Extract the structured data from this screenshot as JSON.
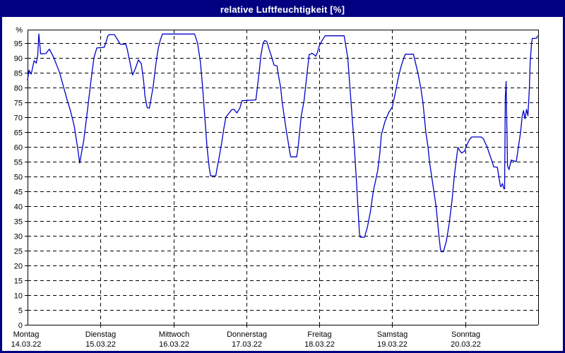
{
  "window": {
    "title": "relative Luftfeuchtigkeit [%]",
    "title_bar_color": "#000080",
    "border_color": "#000080",
    "background_color": "#ffffff"
  },
  "chart_data": {
    "type": "line",
    "title": "relative Luftfeuchtigkeit [%]",
    "xlabel": "",
    "ylabel": "%",
    "ylim": [
      0,
      100
    ],
    "y_ticks": [
      0,
      5,
      10,
      15,
      20,
      25,
      30,
      35,
      40,
      45,
      50,
      55,
      60,
      65,
      70,
      75,
      80,
      85,
      90,
      95
    ],
    "grid": "dashed",
    "legend_position": "none",
    "line_color": "#0000C8",
    "axis_color": "#000000",
    "x_days": [
      {
        "name": "Montag",
        "date": "14.03.22"
      },
      {
        "name": "Dienstag",
        "date": "15.03.22"
      },
      {
        "name": "Mittwoch",
        "date": "16.03.22"
      },
      {
        "name": "Donnerstag",
        "date": "17.03.22"
      },
      {
        "name": "Freitag",
        "date": "18.03.22"
      },
      {
        "name": "Samstag",
        "date": "19.03.22"
      },
      {
        "name": "Sonntag",
        "date": "20.03.22"
      }
    ],
    "series": [
      {
        "name": "relative Luftfeuchtigkeit",
        "unit": "%",
        "x_unit": "days_since_14_03_22",
        "points": [
          [
            0.0,
            82.5
          ],
          [
            0.02,
            85.8
          ],
          [
            0.05,
            84.5
          ],
          [
            0.09,
            89.0
          ],
          [
            0.12,
            88.2
          ],
          [
            0.14,
            91.0
          ],
          [
            0.155,
            98.0
          ],
          [
            0.18,
            91.3
          ],
          [
            0.25,
            91.4
          ],
          [
            0.3,
            92.9
          ],
          [
            0.36,
            90.0
          ],
          [
            0.44,
            85.0
          ],
          [
            0.49,
            80.5
          ],
          [
            0.54,
            76.0
          ],
          [
            0.59,
            72.0
          ],
          [
            0.64,
            67.0
          ],
          [
            0.69,
            59.0
          ],
          [
            0.715,
            54.5
          ],
          [
            0.77,
            62.0
          ],
          [
            0.82,
            72.0
          ],
          [
            0.87,
            82.5
          ],
          [
            0.91,
            90.0
          ],
          [
            0.95,
            93.3
          ],
          [
            1.05,
            93.5
          ],
          [
            1.08,
            95.5
          ],
          [
            1.1,
            97.3
          ],
          [
            1.12,
            97.8
          ],
          [
            1.19,
            97.8
          ],
          [
            1.23,
            96.3
          ],
          [
            1.27,
            94.6
          ],
          [
            1.35,
            94.5
          ],
          [
            1.37,
            92.5
          ],
          [
            1.39,
            90.0
          ],
          [
            1.42,
            86.5
          ],
          [
            1.44,
            84.2
          ],
          [
            1.48,
            86.5
          ],
          [
            1.52,
            89.3
          ],
          [
            1.56,
            88.0
          ],
          [
            1.59,
            82.5
          ],
          [
            1.61,
            77.0
          ],
          [
            1.64,
            73.2
          ],
          [
            1.67,
            73.0
          ],
          [
            1.72,
            80.0
          ],
          [
            1.76,
            88.0
          ],
          [
            1.79,
            93.0
          ],
          [
            1.82,
            96.0
          ],
          [
            1.85,
            98.0
          ],
          [
            2.29,
            98.0
          ],
          [
            2.33,
            95.0
          ],
          [
            2.37,
            88.5
          ],
          [
            2.4,
            80.0
          ],
          [
            2.43,
            70.0
          ],
          [
            2.46,
            60.0
          ],
          [
            2.49,
            53.0
          ],
          [
            2.51,
            50.2
          ],
          [
            2.58,
            50.2
          ],
          [
            2.6,
            53.0
          ],
          [
            2.62,
            55.5
          ],
          [
            2.66,
            61.0
          ],
          [
            2.69,
            66.0
          ],
          [
            2.72,
            70.0
          ],
          [
            2.8,
            72.5
          ],
          [
            2.83,
            72.6
          ],
          [
            2.87,
            71.4
          ],
          [
            2.91,
            73.0
          ],
          [
            2.94,
            75.5
          ],
          [
            3.13,
            75.8
          ],
          [
            3.15,
            80.0
          ],
          [
            3.18,
            86.0
          ],
          [
            3.2,
            91.0
          ],
          [
            3.23,
            95.0
          ],
          [
            3.25,
            95.8
          ],
          [
            3.28,
            95.5
          ],
          [
            3.31,
            93.0
          ],
          [
            3.35,
            90.0
          ],
          [
            3.38,
            87.5
          ],
          [
            3.42,
            87.3
          ],
          [
            3.44,
            84.0
          ],
          [
            3.47,
            80.0
          ],
          [
            3.49,
            75.0
          ],
          [
            3.52,
            70.0
          ],
          [
            3.55,
            65.0
          ],
          [
            3.58,
            60.5
          ],
          [
            3.6,
            57.5
          ],
          [
            3.61,
            56.6
          ],
          [
            3.69,
            56.6
          ],
          [
            3.71,
            60.0
          ],
          [
            3.73,
            65.0
          ],
          [
            3.75,
            70.0
          ],
          [
            3.79,
            75.5
          ],
          [
            3.86,
            91.0
          ],
          [
            3.9,
            91.5
          ],
          [
            3.93,
            91.0
          ],
          [
            3.95,
            90.5
          ],
          [
            3.97,
            91.5
          ],
          [
            4.0,
            94.0
          ],
          [
            4.03,
            95.5
          ],
          [
            4.08,
            97.4
          ],
          [
            4.34,
            97.4
          ],
          [
            4.39,
            90.0
          ],
          [
            4.42,
            80.0
          ],
          [
            4.45,
            70.0
          ],
          [
            4.48,
            60.0
          ],
          [
            4.51,
            48.0
          ],
          [
            4.55,
            31.0
          ],
          [
            4.56,
            29.5
          ],
          [
            4.62,
            29.5
          ],
          [
            4.66,
            33.0
          ],
          [
            4.7,
            38.0
          ],
          [
            4.74,
            45.0
          ],
          [
            4.8,
            52.0
          ],
          [
            4.83,
            58.0
          ],
          [
            4.85,
            64.0
          ],
          [
            4.9,
            68.5
          ],
          [
            4.95,
            71.5
          ],
          [
            5.0,
            73.4
          ],
          [
            5.04,
            78.0
          ],
          [
            5.08,
            83.0
          ],
          [
            5.12,
            87.0
          ],
          [
            5.16,
            90.1
          ],
          [
            5.18,
            91.2
          ],
          [
            5.29,
            91.2
          ],
          [
            5.35,
            85.0
          ],
          [
            5.39,
            80.0
          ],
          [
            5.42,
            75.0
          ],
          [
            5.44,
            70.0
          ],
          [
            5.46,
            65.0
          ],
          [
            5.49,
            60.0
          ],
          [
            5.51,
            55.0
          ],
          [
            5.54,
            50.0
          ],
          [
            5.57,
            45.0
          ],
          [
            5.6,
            40.0
          ],
          [
            5.62,
            35.0
          ],
          [
            5.64,
            30.0
          ],
          [
            5.66,
            25.5
          ],
          [
            5.67,
            24.6
          ],
          [
            5.7,
            24.6
          ],
          [
            5.74,
            28.0
          ],
          [
            5.78,
            34.0
          ],
          [
            5.82,
            42.0
          ],
          [
            5.85,
            50.0
          ],
          [
            5.88,
            56.0
          ],
          [
            5.9,
            59.8
          ],
          [
            5.93,
            58.5
          ],
          [
            5.95,
            57.9
          ],
          [
            5.99,
            58.5
          ],
          [
            6.02,
            60.5
          ],
          [
            6.06,
            62.5
          ],
          [
            6.09,
            63.3
          ],
          [
            6.22,
            63.3
          ],
          [
            6.25,
            62.7
          ],
          [
            6.28,
            61.0
          ],
          [
            6.3,
            60.0
          ],
          [
            6.34,
            57.0
          ],
          [
            6.37,
            55.0
          ],
          [
            6.39,
            53.2
          ],
          [
            6.44,
            53.1
          ],
          [
            6.46,
            50.0
          ],
          [
            6.48,
            47.0
          ],
          [
            6.49,
            46.5
          ],
          [
            6.51,
            47.6
          ],
          [
            6.53,
            45.8
          ],
          [
            6.54,
            45.8
          ],
          [
            6.55,
            76.7
          ],
          [
            6.56,
            82.0
          ],
          [
            6.58,
            53.6
          ],
          [
            6.6,
            52.3
          ],
          [
            6.63,
            55.5
          ],
          [
            6.7,
            55.0
          ],
          [
            6.73,
            60.0
          ],
          [
            6.76,
            65.1
          ],
          [
            6.78,
            70.2
          ],
          [
            6.8,
            72.2
          ],
          [
            6.82,
            69.4
          ],
          [
            6.84,
            72.6
          ],
          [
            6.86,
            70.5
          ],
          [
            6.88,
            80.0
          ],
          [
            6.89,
            88.0
          ],
          [
            6.91,
            95.0
          ],
          [
            6.92,
            96.5
          ],
          [
            6.98,
            96.6
          ],
          [
            6.99,
            97.3
          ]
        ]
      }
    ]
  }
}
